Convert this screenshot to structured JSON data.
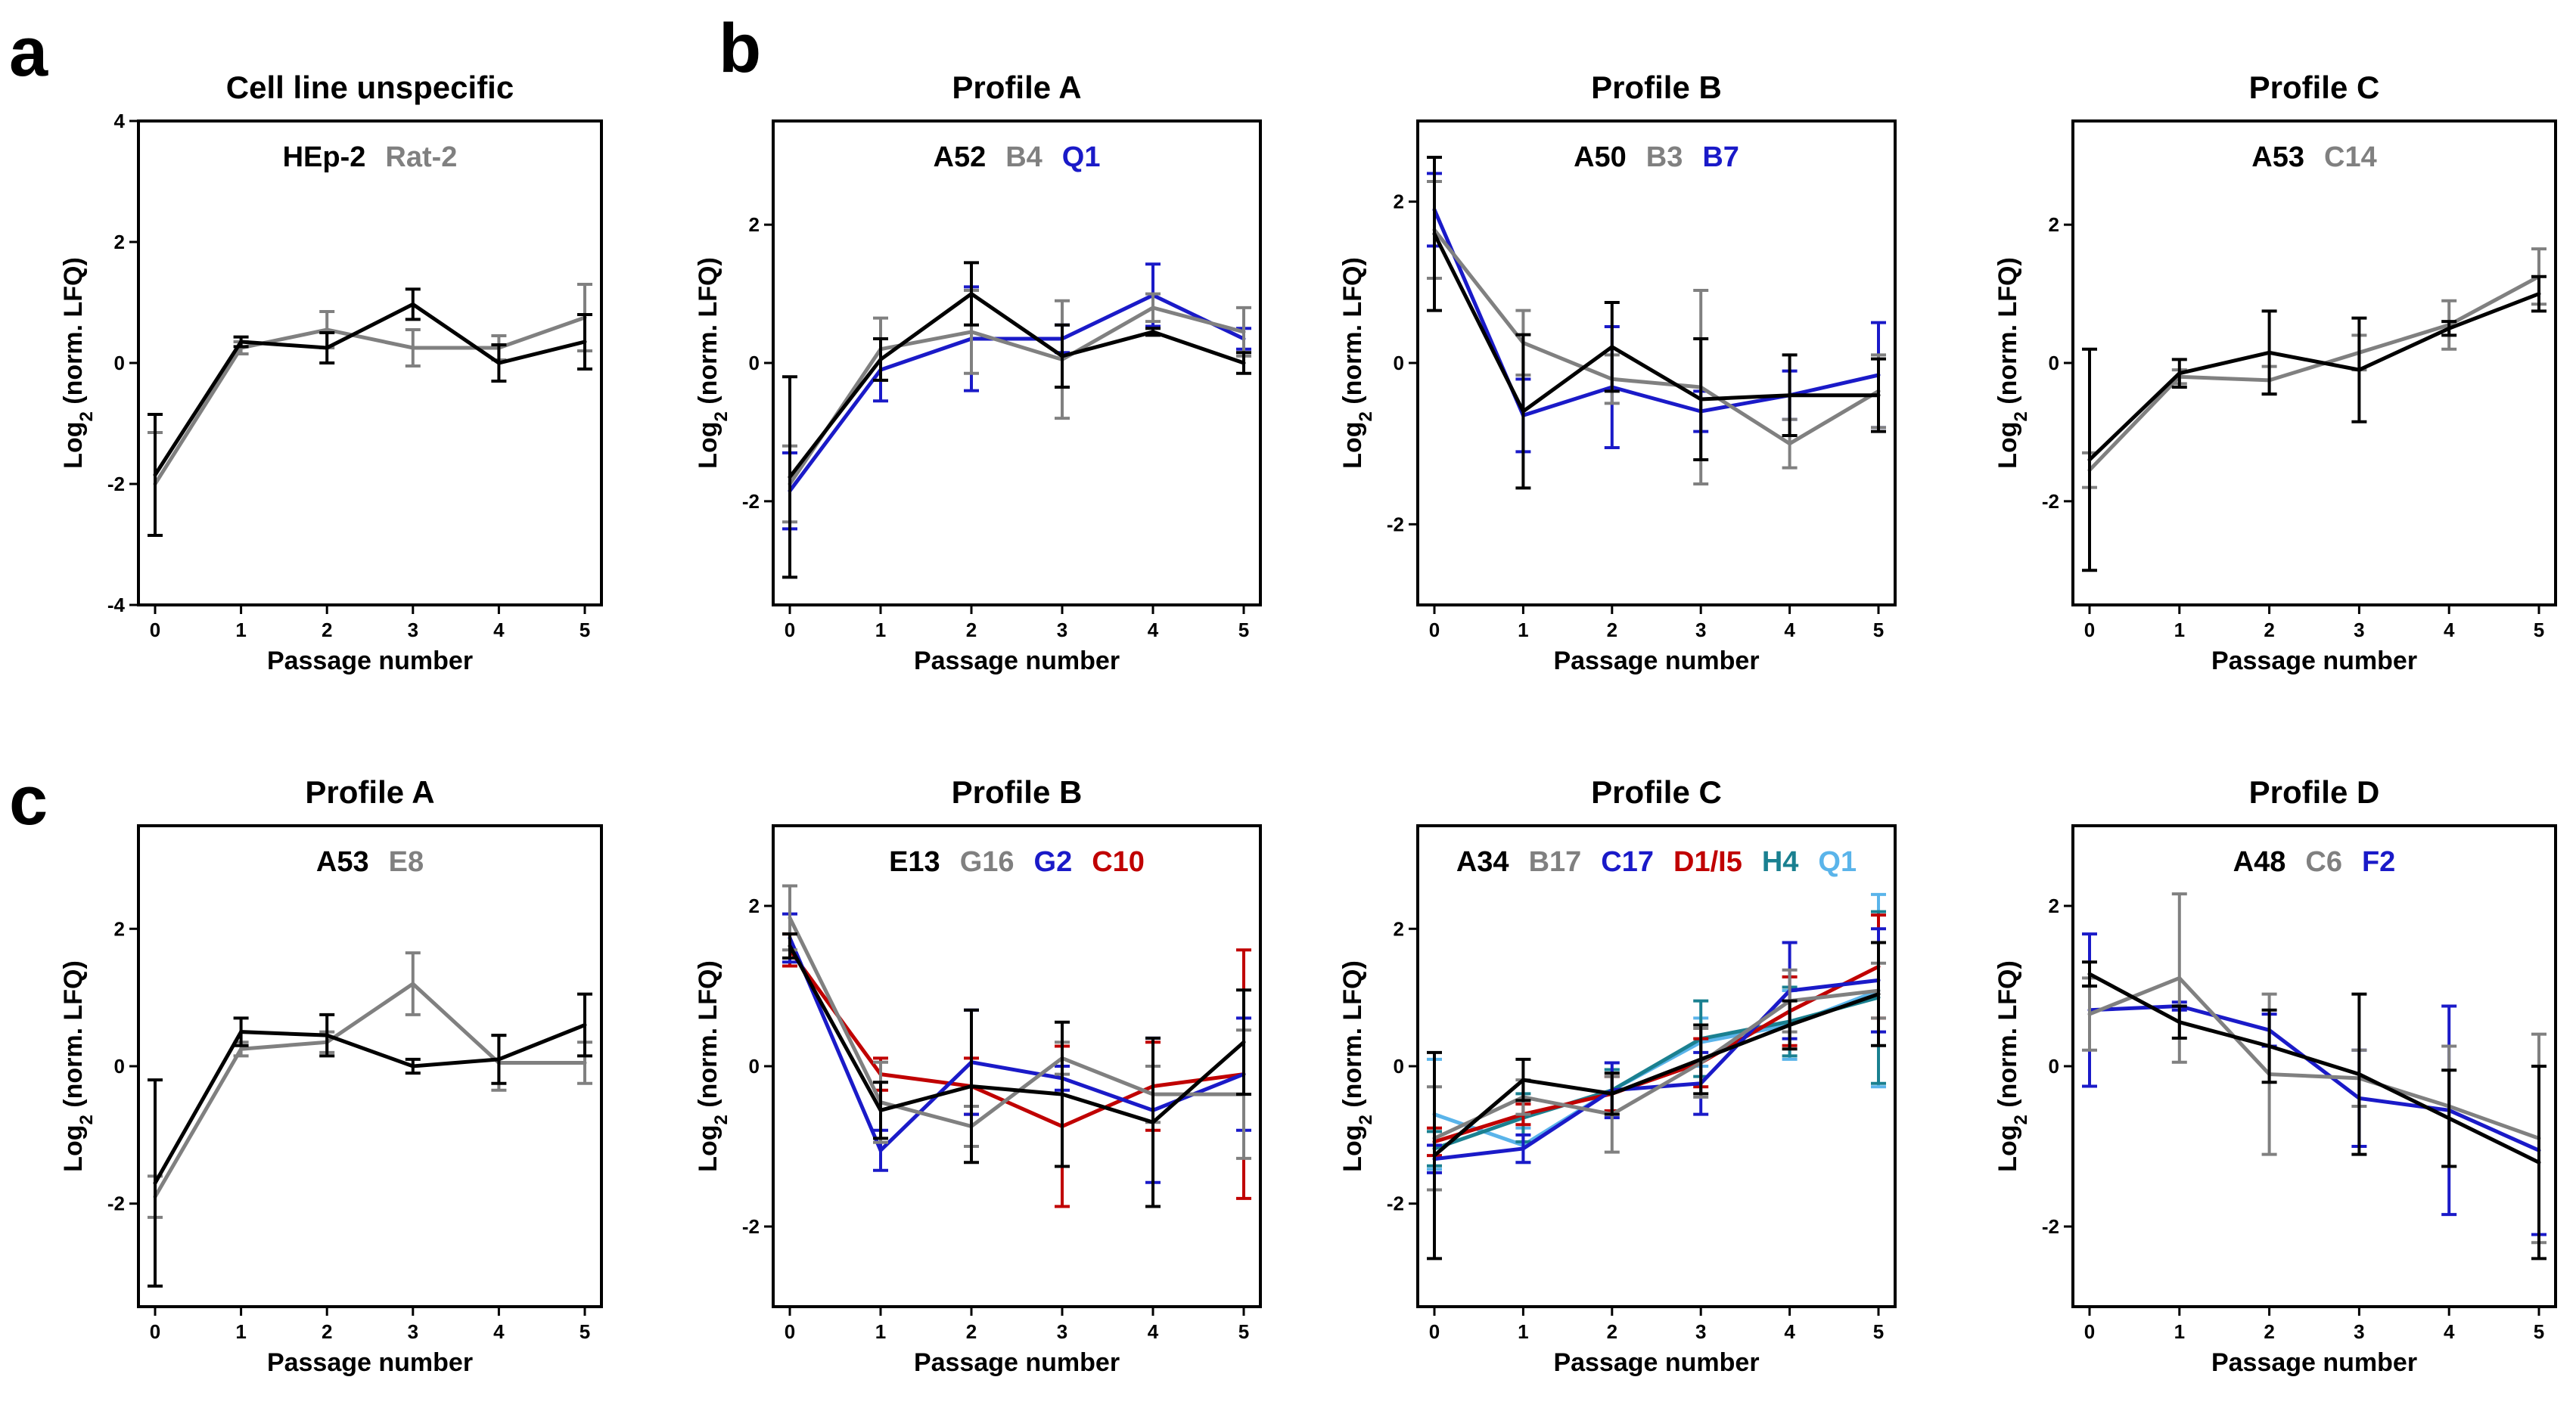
{
  "panel_labels": {
    "a": "a",
    "b": "b",
    "c": "c"
  },
  "colors": {
    "black": "#000000",
    "gray": "#808080",
    "blue": "#1a1ac8",
    "red": "#c00000",
    "teal": "#1a8090",
    "lightblue": "#5ab4ea"
  },
  "chart_data": [
    {
      "type": "line",
      "id": "a1",
      "title": "Cell line unspecific",
      "xlabel": "Passage number",
      "ylabel": "Log2 (norm. LFQ)",
      "x": [
        0,
        1,
        2,
        3,
        4,
        5
      ],
      "ylim": [
        -4,
        4
      ],
      "yticks": [
        -4,
        -2,
        0,
        2,
        4
      ],
      "series": [
        {
          "name": "HEp-2",
          "color": "#000000",
          "values": [
            -1.85,
            0.35,
            0.25,
            0.97,
            0.0,
            0.35
          ],
          "err": [
            1.0,
            0.08,
            0.25,
            0.25,
            0.3,
            0.45
          ]
        },
        {
          "name": "Rat-2",
          "color": "#808080",
          "values": [
            -2.0,
            0.25,
            0.55,
            0.25,
            0.25,
            0.75
          ],
          "err": [
            0.85,
            0.1,
            0.3,
            0.3,
            0.2,
            0.55
          ]
        }
      ]
    },
    {
      "type": "line",
      "id": "b1",
      "title": "Profile A",
      "xlabel": "Passage number",
      "ylabel": "Log2 (norm. LFQ)",
      "x": [
        0,
        1,
        2,
        3,
        4,
        5
      ],
      "ylim": [
        -3.5,
        3.5
      ],
      "yticks": [
        -2,
        0,
        2
      ],
      "series": [
        {
          "name": "A52",
          "color": "#000000",
          "values": [
            -1.65,
            0.05,
            1.0,
            0.1,
            0.45,
            0.0
          ],
          "err": [
            1.45,
            0.3,
            0.45,
            0.45,
            0.05,
            0.15
          ]
        },
        {
          "name": "B4",
          "color": "#808080",
          "values": [
            -1.75,
            0.2,
            0.45,
            0.05,
            0.8,
            0.45
          ],
          "err": [
            0.55,
            0.45,
            0.6,
            0.85,
            0.2,
            0.35
          ]
        },
        {
          "name": "Q1",
          "color": "#1a1ac8",
          "values": [
            -1.85,
            -0.1,
            0.35,
            0.35,
            0.98,
            0.35
          ],
          "err": [
            0.55,
            0.45,
            0.75,
            0.2,
            0.45,
            0.15
          ]
        }
      ]
    },
    {
      "type": "line",
      "id": "b2",
      "title": "Profile B",
      "xlabel": "Passage number",
      "ylabel": "Log2 (norm. LFQ)",
      "x": [
        0,
        1,
        2,
        3,
        4,
        5
      ],
      "ylim": [
        -3,
        3
      ],
      "yticks": [
        -2,
        0,
        2
      ],
      "series": [
        {
          "name": "A50",
          "color": "#000000",
          "values": [
            1.6,
            -0.6,
            0.2,
            -0.45,
            -0.4,
            -0.4
          ],
          "err": [
            0.95,
            0.95,
            0.55,
            0.75,
            0.5,
            0.45
          ]
        },
        {
          "name": "B3",
          "color": "#808080",
          "values": [
            1.65,
            0.25,
            -0.2,
            -0.3,
            -1.0,
            -0.35
          ],
          "err": [
            0.6,
            0.4,
            0.3,
            1.2,
            0.3,
            0.45
          ]
        },
        {
          "name": "B7",
          "color": "#1a1ac8",
          "values": [
            1.9,
            -0.65,
            -0.3,
            -0.6,
            -0.4,
            -0.15
          ],
          "err": [
            0.45,
            0.45,
            0.75,
            0.25,
            0.3,
            0.65
          ]
        }
      ]
    },
    {
      "type": "line",
      "id": "b3",
      "title": "Profile C",
      "xlabel": "Passage number",
      "ylabel": "Log2 (norm. LFQ)",
      "x": [
        0,
        1,
        2,
        3,
        4,
        5
      ],
      "ylim": [
        -3.5,
        3.5
      ],
      "yticks": [
        -2,
        0,
        2
      ],
      "series": [
        {
          "name": "A53",
          "color": "#000000",
          "values": [
            -1.4,
            -0.15,
            0.15,
            -0.1,
            0.5,
            1.0
          ],
          "err": [
            1.6,
            0.2,
            0.6,
            0.75,
            0.1,
            0.25
          ]
        },
        {
          "name": "C14",
          "color": "#808080",
          "values": [
            -1.55,
            -0.2,
            -0.25,
            0.15,
            0.55,
            1.25
          ],
          "err": [
            0.25,
            0.1,
            0.2,
            0.25,
            0.35,
            0.4
          ]
        }
      ]
    },
    {
      "type": "line",
      "id": "c1",
      "title": "Profile A",
      "xlabel": "Passage number",
      "ylabel": "Log2 (norm. LFQ)",
      "x": [
        0,
        1,
        2,
        3,
        4,
        5
      ],
      "ylim": [
        -3.5,
        3.5
      ],
      "yticks": [
        -2,
        0,
        2
      ],
      "series": [
        {
          "name": "A53",
          "color": "#000000",
          "values": [
            -1.7,
            0.5,
            0.45,
            0.0,
            0.1,
            0.6
          ],
          "err": [
            1.5,
            0.2,
            0.3,
            0.1,
            0.35,
            0.45
          ]
        },
        {
          "name": "E8",
          "color": "#808080",
          "values": [
            -1.9,
            0.25,
            0.35,
            1.2,
            0.05,
            0.05
          ],
          "err": [
            0.3,
            0.1,
            0.15,
            0.45,
            0.4,
            0.3
          ]
        }
      ]
    },
    {
      "type": "line",
      "id": "c2",
      "title": "Profile B",
      "xlabel": "Passage number",
      "ylabel": "Log2 (norm. LFQ)",
      "x": [
        0,
        1,
        2,
        3,
        4,
        5
      ],
      "ylim": [
        -3,
        3
      ],
      "yticks": [
        -2,
        0,
        2
      ],
      "series": [
        {
          "name": "E13",
          "color": "#000000",
          "values": [
            1.5,
            -0.55,
            -0.25,
            -0.35,
            -0.7,
            0.3
          ],
          "err": [
            0.15,
            0.35,
            0.95,
            0.9,
            1.05,
            0.65
          ]
        },
        {
          "name": "G16",
          "color": "#808080",
          "values": [
            1.85,
            -0.45,
            -0.75,
            0.1,
            -0.35,
            -0.35
          ],
          "err": [
            0.4,
            0.5,
            0.25,
            0.2,
            0.35,
            0.8
          ]
        },
        {
          "name": "G2",
          "color": "#1a1ac8",
          "values": [
            1.6,
            -1.05,
            0.05,
            -0.15,
            -0.55,
            -0.1
          ],
          "err": [
            0.3,
            0.25,
            0.65,
            0.15,
            0.9,
            0.7
          ]
        },
        {
          "name": "C10",
          "color": "#c00000",
          "values": [
            1.45,
            -0.1,
            -0.25,
            -0.75,
            -0.25,
            -0.1
          ],
          "err": [
            0.2,
            0.2,
            0.35,
            1.0,
            0.55,
            1.55
          ]
        }
      ]
    },
    {
      "type": "line",
      "id": "c3",
      "title": "Profile C",
      "xlabel": "Passage number",
      "ylabel": "Log2 (norm. LFQ)",
      "x": [
        0,
        1,
        2,
        3,
        4,
        5
      ],
      "ylim": [
        -3.5,
        3.5
      ],
      "yticks": [
        -2,
        0,
        2
      ],
      "series": [
        {
          "name": "A34",
          "color": "#000000",
          "values": [
            -1.3,
            -0.2,
            -0.4,
            0.1,
            0.6,
            1.05
          ],
          "err": [
            1.5,
            0.3,
            0.3,
            0.5,
            0.35,
            0.75
          ]
        },
        {
          "name": "B17",
          "color": "#808080",
          "values": [
            -1.05,
            -0.45,
            -0.7,
            0.05,
            0.95,
            1.1
          ],
          "err": [
            0.75,
            0.25,
            0.55,
            0.5,
            0.45,
            0.4
          ]
        },
        {
          "name": "C17",
          "color": "#1a1ac8",
          "values": [
            -1.35,
            -1.2,
            -0.35,
            -0.25,
            1.1,
            1.25
          ],
          "err": [
            0.2,
            0.2,
            0.4,
            0.45,
            0.7,
            0.75
          ]
        },
        {
          "name": "D1/I5",
          "color": "#c00000",
          "values": [
            -1.1,
            -0.7,
            -0.4,
            0.05,
            0.8,
            1.45
          ],
          "err": [
            0.2,
            0.15,
            0.25,
            0.35,
            0.5,
            0.75
          ]
        },
        {
          "name": "H4",
          "color": "#1a8090",
          "values": [
            -1.2,
            -0.75,
            -0.35,
            0.4,
            0.65,
            1.0
          ],
          "err": [
            0.25,
            0.35,
            0.3,
            0.55,
            0.5,
            1.25
          ]
        },
        {
          "name": "Q1",
          "color": "#5ab4ea",
          "values": [
            -0.7,
            -1.15,
            -0.35,
            0.35,
            0.6,
            1.1
          ],
          "err": [
            0.8,
            0.25,
            0.3,
            0.35,
            0.5,
            1.4
          ]
        }
      ]
    },
    {
      "type": "line",
      "id": "c4",
      "title": "Profile D",
      "xlabel": "Passage number",
      "ylabel": "Log2 (norm. LFQ)",
      "x": [
        0,
        1,
        2,
        3,
        4,
        5
      ],
      "ylim": [
        -3,
        3
      ],
      "yticks": [
        -2,
        0,
        2
      ],
      "series": [
        {
          "name": "A48",
          "color": "#000000",
          "values": [
            1.15,
            0.55,
            0.25,
            -0.1,
            -0.65,
            -1.2
          ],
          "err": [
            0.15,
            0.2,
            0.45,
            1.0,
            0.6,
            1.2
          ]
        },
        {
          "name": "C6",
          "color": "#808080",
          "values": [
            0.65,
            1.1,
            -0.1,
            -0.15,
            -0.5,
            -0.9
          ],
          "err": [
            0.45,
            1.05,
            1.0,
            0.35,
            0.75,
            1.3
          ]
        },
        {
          "name": "F2",
          "color": "#1a1ac8",
          "values": [
            0.7,
            0.75,
            0.45,
            -0.4,
            -0.55,
            -1.05
          ],
          "err": [
            0.95,
            0.05,
            0.2,
            0.6,
            1.3,
            1.05
          ]
        }
      ]
    }
  ]
}
